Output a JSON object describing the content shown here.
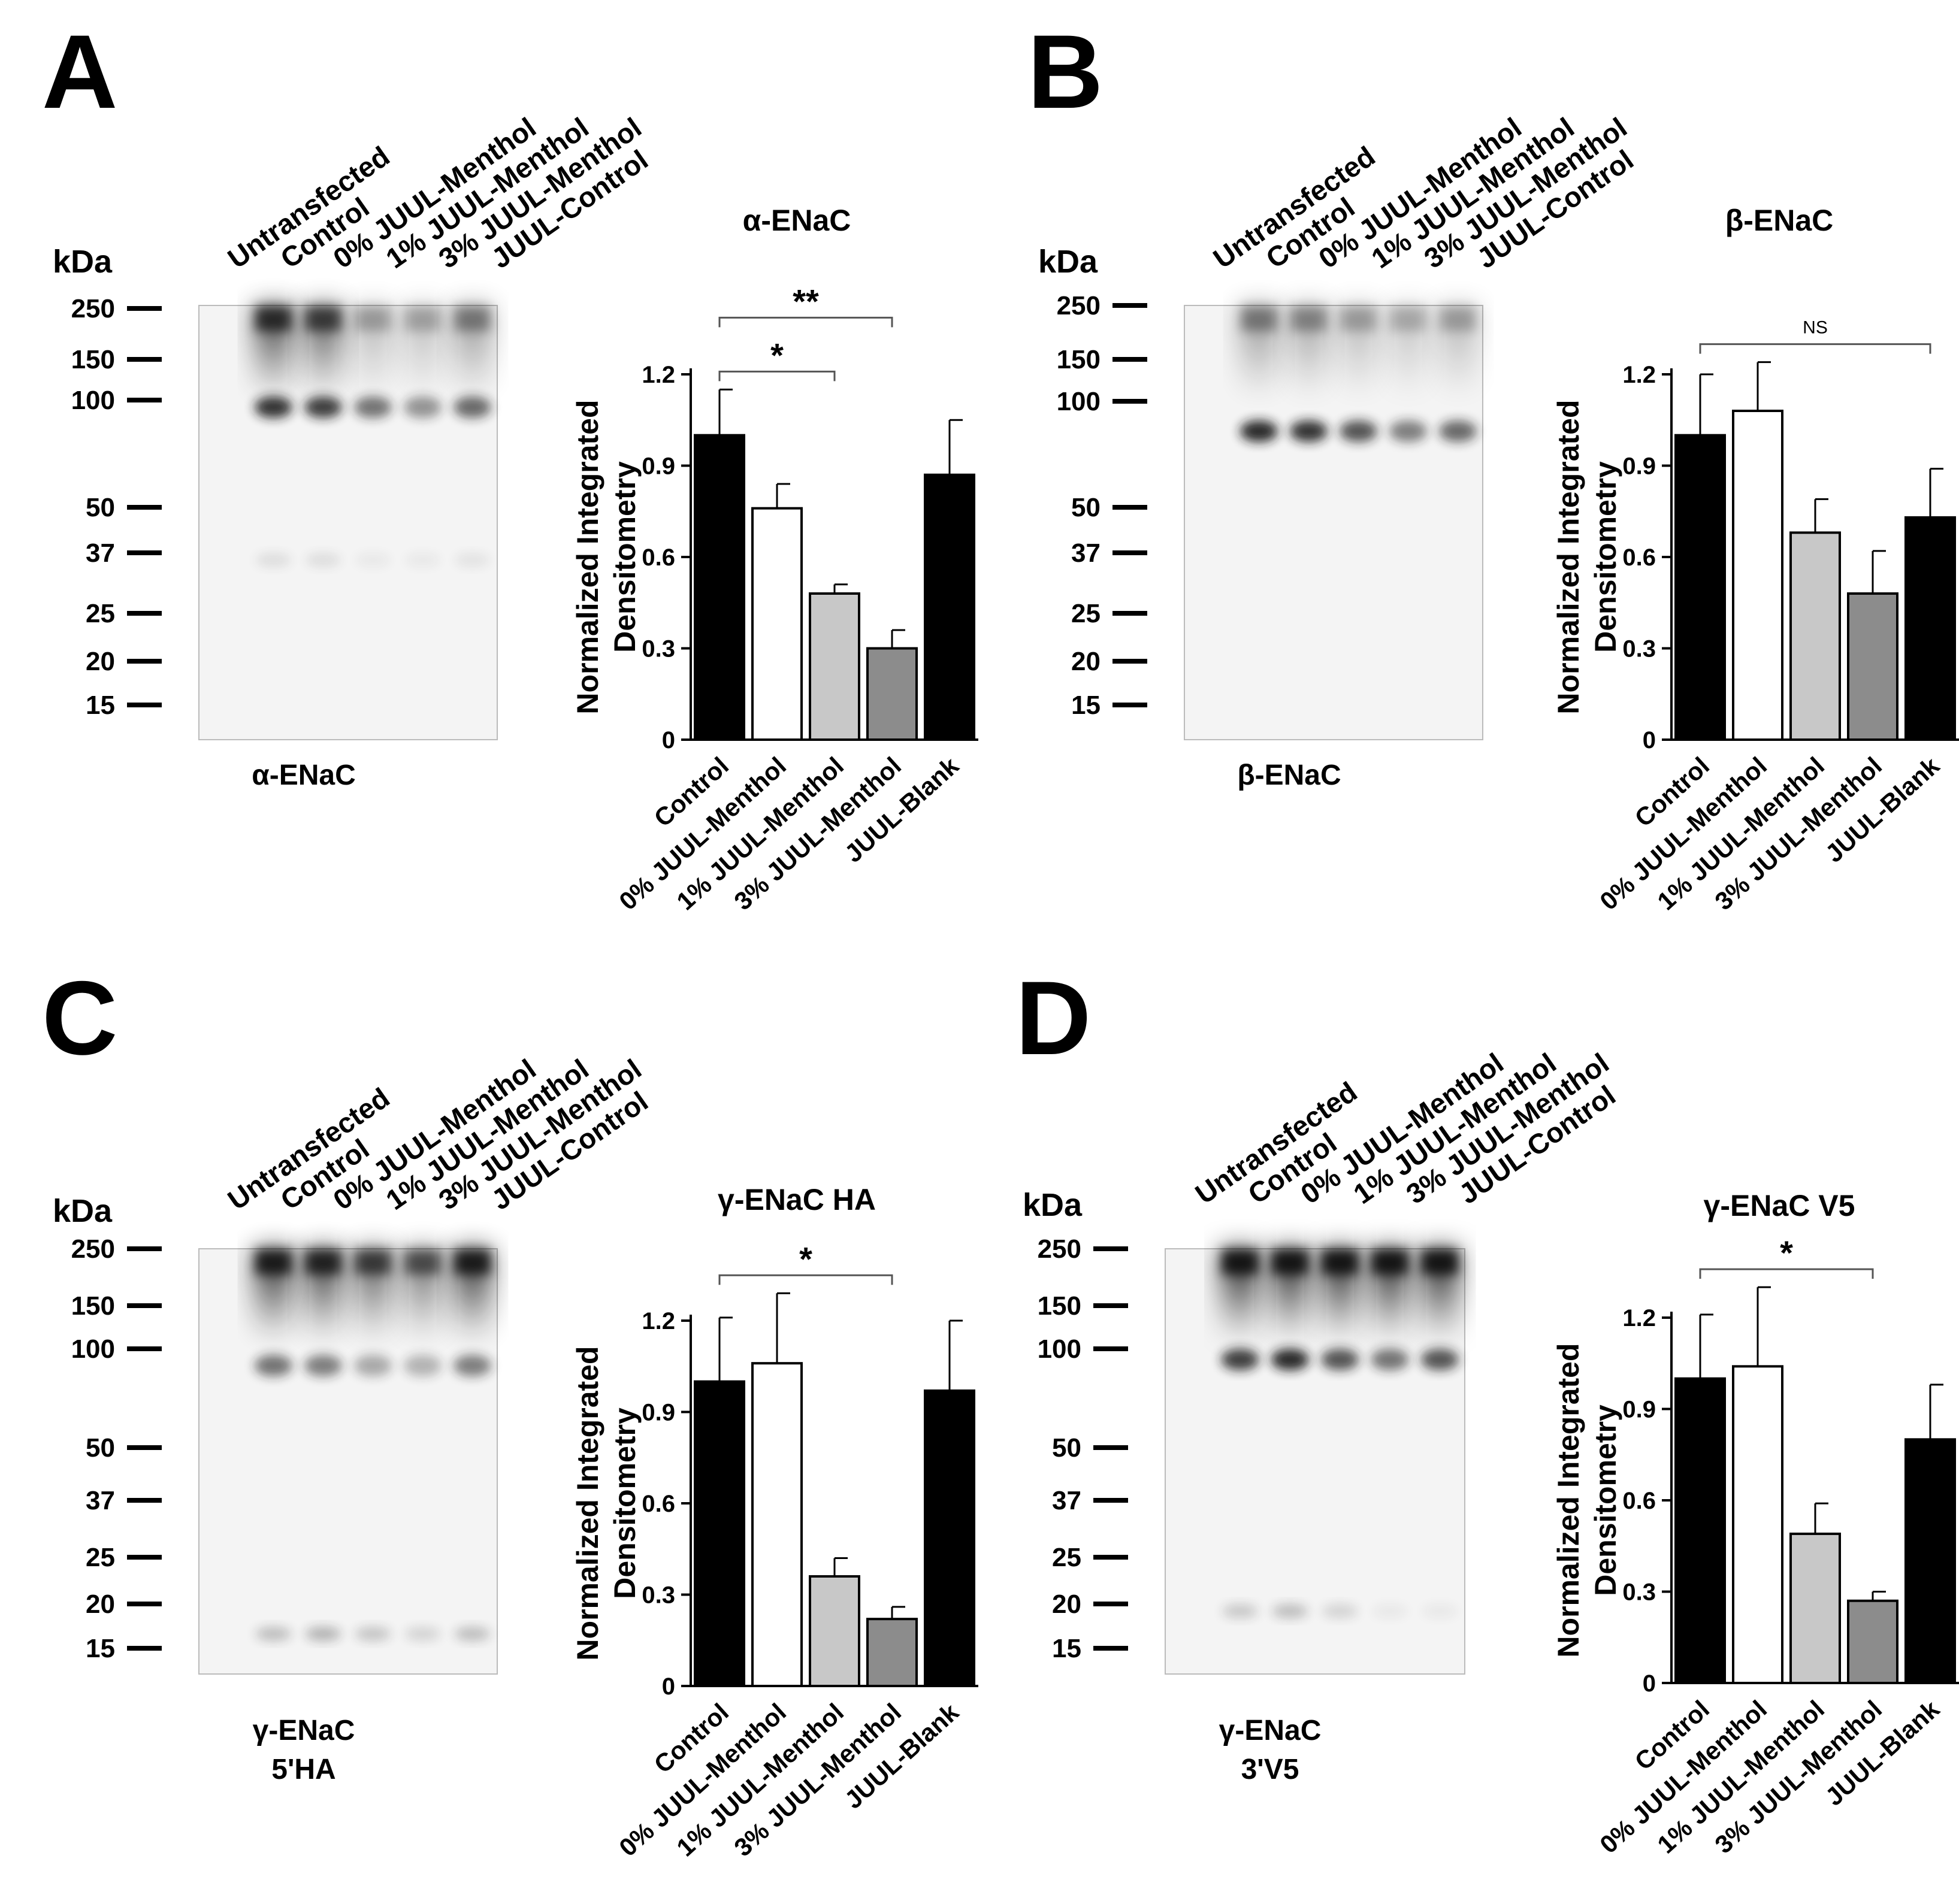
{
  "panels": [
    {
      "letter": "A",
      "blot": {
        "kda_label": "kDa",
        "lanes": [
          "Untransfected",
          "Control",
          "0% JUUL-Menthol",
          "1% JUUL-Menthol",
          "3% JUUL-Menthol",
          "JUUL-Control"
        ],
        "markers": [
          "250",
          "150",
          "100",
          "50",
          "37",
          "25",
          "20",
          "15"
        ],
        "caption": [
          "α-ENaC"
        ]
      },
      "chart_data": {
        "type": "bar",
        "title": "α-ENaC",
        "ylabel": [
          "Normalized Integrated",
          "Densitometry"
        ],
        "xlabel": "",
        "categories": [
          "Control",
          "0% JUUL-Menthol",
          "1% JUUL-Menthol",
          "3% JUUL-Menthol",
          "JUUL-Blank"
        ],
        "values": [
          1.0,
          0.76,
          0.48,
          0.3,
          0.87
        ],
        "errors": [
          0.15,
          0.08,
          0.03,
          0.06,
          0.18
        ],
        "ylim": [
          0,
          1.2
        ],
        "yticks": [
          "0",
          "0.3",
          "0.6",
          "0.9",
          "1.2"
        ],
        "significance": [
          {
            "from": 0,
            "to": 2,
            "label": "*"
          },
          {
            "from": 0,
            "to": 3,
            "label": "**"
          }
        ]
      }
    },
    {
      "letter": "B",
      "blot": {
        "kda_label": "kDa",
        "lanes": [
          "Untransfected",
          "Control",
          "0% JUUL-Menthol",
          "1% JUUL-Menthol",
          "3% JUUL-Menthol",
          "JUUL-Control"
        ],
        "markers": [
          "250",
          "150",
          "100",
          "50",
          "37",
          "25",
          "20",
          "15"
        ],
        "caption": [
          "β-ENaC"
        ]
      },
      "chart_data": {
        "type": "bar",
        "title": "β-ENaC",
        "ylabel": [
          "Normalized Integrated",
          "Densitometry"
        ],
        "xlabel": "",
        "categories": [
          "Control",
          "0% JUUL-Menthol",
          "1% JUUL-Menthol",
          "3% JUUL-Menthol",
          "JUUL-Blank"
        ],
        "values": [
          1.0,
          1.08,
          0.68,
          0.48,
          0.73
        ],
        "errors": [
          0.2,
          0.16,
          0.11,
          0.14,
          0.16
        ],
        "ylim": [
          0,
          1.2
        ],
        "yticks": [
          "0",
          "0.3",
          "0.6",
          "0.9",
          "1.2"
        ],
        "significance": [
          {
            "from": 0,
            "to": 4,
            "label": "NS"
          }
        ]
      }
    },
    {
      "letter": "C",
      "blot": {
        "kda_label": "kDa",
        "lanes": [
          "Untransfected",
          "Control",
          "0% JUUL-Menthol",
          "1% JUUL-Menthol",
          "3% JUUL-Menthol",
          "JUUL-Control"
        ],
        "markers": [
          "250",
          "150",
          "100",
          "50",
          "37",
          "25",
          "20",
          "15"
        ],
        "caption": [
          "γ-ENaC",
          "5'HA"
        ]
      },
      "chart_data": {
        "type": "bar",
        "title": "γ-ENaC HA",
        "ylabel": [
          "Normalized Integrated",
          "Densitometry"
        ],
        "xlabel": "",
        "categories": [
          "Control",
          "0% JUUL-Menthol",
          "1% JUUL-Menthol",
          "3% JUUL-Menthol",
          "JUUL-Blank"
        ],
        "values": [
          1.0,
          1.06,
          0.36,
          0.22,
          0.97
        ],
        "errors": [
          0.21,
          0.23,
          0.06,
          0.04,
          0.23
        ],
        "ylim": [
          0,
          1.2
        ],
        "yticks": [
          "0",
          "0.3",
          "0.6",
          "0.9",
          "1.2"
        ],
        "significance": [
          {
            "from": 0,
            "to": 3,
            "label": "*"
          }
        ]
      }
    },
    {
      "letter": "D",
      "blot": {
        "kda_label": "kDa",
        "lanes": [
          "Untransfected",
          "Control",
          "0% JUUL-Menthol",
          "1% JUUL-Menthol",
          "3% JUUL-Menthol",
          "JUUL-Control"
        ],
        "markers": [
          "250",
          "150",
          "100",
          "50",
          "37",
          "25",
          "20",
          "15"
        ],
        "caption": [
          "γ-ENaC",
          "3'V5"
        ]
      },
      "chart_data": {
        "type": "bar",
        "title": "γ-ENaC V5",
        "ylabel": [
          "Normalized Integrated",
          "Densitometry"
        ],
        "xlabel": "",
        "categories": [
          "Control",
          "0% JUUL-Menthol",
          "1% JUUL-Menthol",
          "3% JUUL-Menthol",
          "JUUL-Blank"
        ],
        "values": [
          1.0,
          1.04,
          0.49,
          0.27,
          0.8
        ],
        "errors": [
          0.21,
          0.26,
          0.1,
          0.03,
          0.18
        ],
        "ylim": [
          0,
          1.2
        ],
        "yticks": [
          "0",
          "0.3",
          "0.6",
          "0.9",
          "1.2"
        ],
        "significance": [
          {
            "from": 0,
            "to": 3,
            "label": "*"
          }
        ]
      }
    }
  ],
  "style": {
    "bar_fills": [
      "#000000",
      "#ffffff",
      "#c8c8c8",
      "#8c8c8c",
      "#000000"
    ],
    "blot_background": "#f4f4f4",
    "band_color": "#1a1a1a"
  }
}
